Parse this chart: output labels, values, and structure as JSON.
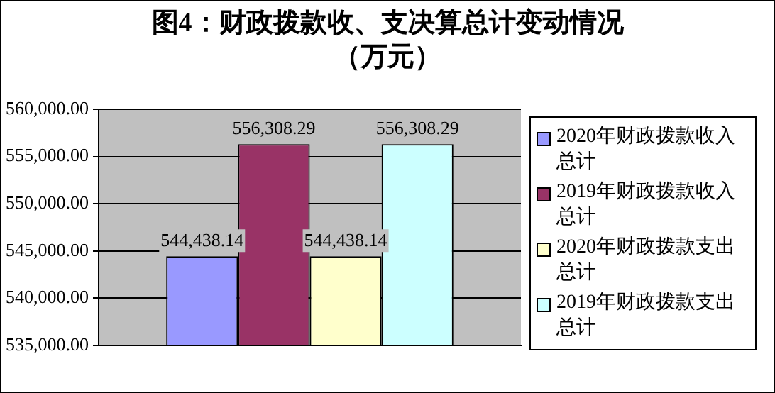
{
  "chart_data": {
    "type": "bar",
    "title": "图4：财政拨款收、支决算总计变动情况（万元）",
    "categories": [
      null
    ],
    "series": [
      {
        "name": "2020年财政拨款收入总计",
        "color": "#9999ff",
        "values": [
          544438.14
        ],
        "value_labels": [
          "544,438.14"
        ]
      },
      {
        "name": "2019年财政拨款收入总计",
        "color": "#993366",
        "values": [
          556308.29
        ],
        "value_labels": [
          "556,308.29"
        ]
      },
      {
        "name": "2020年财政拨款支出总计",
        "color": "#ffffcc",
        "values": [
          544438.14
        ],
        "value_labels": [
          "544,438.14"
        ]
      },
      {
        "name": "2019年财政拨款支出总计",
        "color": "#ccffff",
        "values": [
          556308.29
        ],
        "value_labels": [
          "556,308.29"
        ]
      }
    ],
    "ylim": [
      535000,
      560000
    ],
    "yticks": [
      {
        "value": 535000,
        "label": "535,000.00"
      },
      {
        "value": 540000,
        "label": "540,000.00"
      },
      {
        "value": 545000,
        "label": "545,000.00"
      },
      {
        "value": 550000,
        "label": "550,000.00"
      },
      {
        "value": 555000,
        "label": "555,000.00"
      },
      {
        "value": 560000,
        "label": "560,000.00"
      }
    ],
    "grid": "y",
    "legend": "right"
  }
}
